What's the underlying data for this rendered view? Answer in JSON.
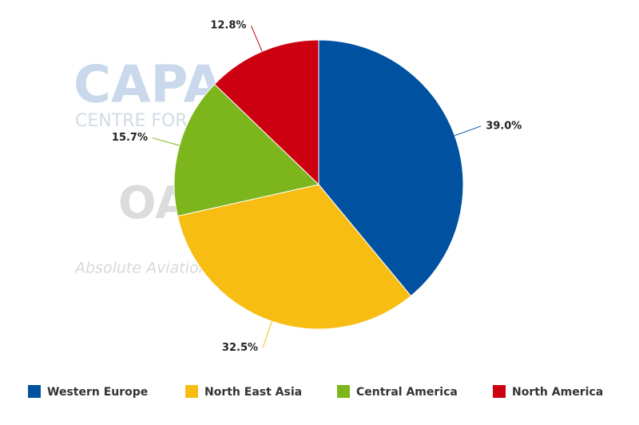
{
  "chart_data": {
    "type": "pie",
    "categories": [
      "Western Europe",
      "North East Asia",
      "Central America",
      "North America"
    ],
    "values": [
      39.0,
      32.5,
      15.7,
      12.8
    ],
    "value_labels": [
      "39.0%",
      "32.5%",
      "15.7%",
      "12.8%"
    ],
    "colors": [
      "#0052a0",
      "#f7bd13",
      "#7cb51c",
      "#cc0010"
    ],
    "legend": "bottom",
    "watermark": [
      "CAPA",
      "CENTRE FOR AVIATION",
      "OAG",
      "Absolute Aviation"
    ]
  }
}
